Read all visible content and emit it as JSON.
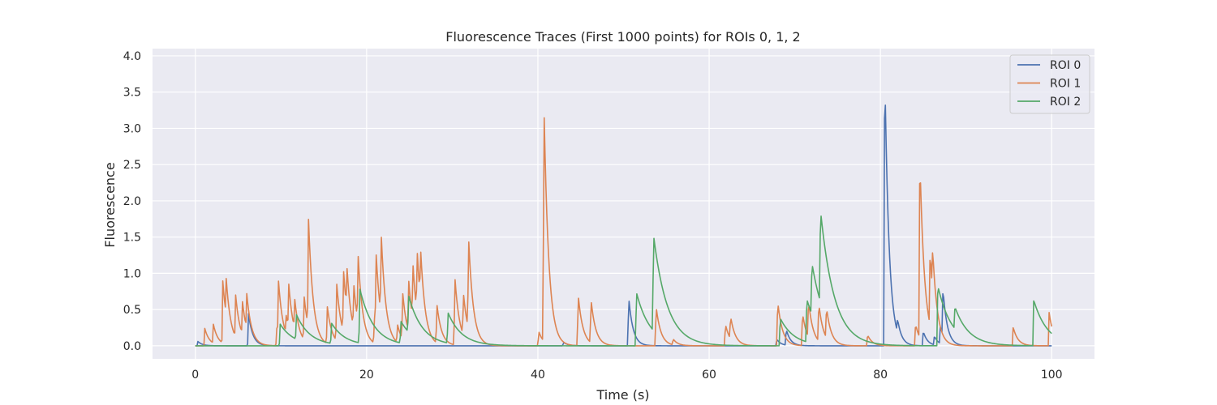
{
  "chart_data": {
    "type": "line",
    "title": "Fluorescence Traces (First 1000 points) for ROIs 0, 1, 2",
    "xlabel": "Time (s)",
    "ylabel": "Fluorescence",
    "xlim": [
      -5,
      105
    ],
    "ylim": [
      -0.18,
      4.1
    ],
    "xticks": [
      0,
      20,
      40,
      60,
      80,
      100
    ],
    "yticks": [
      0.0,
      0.5,
      1.0,
      1.5,
      2.0,
      2.5,
      3.0,
      3.5,
      4.0
    ],
    "xtick_labels": [
      "0",
      "20",
      "40",
      "60",
      "80",
      "100"
    ],
    "ytick_labels": [
      "0.0",
      "0.5",
      "1.0",
      "1.5",
      "2.0",
      "2.5",
      "3.0",
      "3.5",
      "4.0"
    ],
    "grid": true,
    "legend_position": "top-right",
    "background_color": "#eaeaf2",
    "series": [
      {
        "name": "ROI 0",
        "color": "#4c72b0",
        "tau": 0.5,
        "events": [
          [
            0.2,
            0.06
          ],
          [
            6.1,
            0.45
          ],
          [
            42.9,
            0.05
          ],
          [
            50.5,
            0.68
          ],
          [
            67.8,
            0.09
          ],
          [
            68.9,
            0.22
          ],
          [
            80.4,
            3.9
          ],
          [
            81.9,
            0.18
          ],
          [
            84.9,
            0.2
          ],
          [
            86.2,
            0.12
          ],
          [
            86.9,
            0.25
          ],
          [
            87.2,
            0.64
          ]
        ]
      },
      {
        "name": "ROI 1",
        "color": "#dd8452",
        "tau": 0.55,
        "events": [
          [
            1.0,
            0.24
          ],
          [
            2.0,
            0.26
          ],
          [
            3.1,
            0.86
          ],
          [
            3.5,
            0.5
          ],
          [
            4.6,
            0.58
          ],
          [
            5.4,
            0.45
          ],
          [
            5.9,
            0.48
          ],
          [
            9.4,
            0.24
          ],
          [
            9.6,
            0.74
          ],
          [
            10.5,
            0.25
          ],
          [
            10.8,
            0.62
          ],
          [
            11.5,
            0.41
          ],
          [
            12.6,
            0.6
          ],
          [
            13.1,
            1.51
          ],
          [
            15.3,
            0.52
          ],
          [
            16.4,
            0.8
          ],
          [
            17.2,
            0.85
          ],
          [
            17.6,
            0.59
          ],
          [
            18.4,
            0.6
          ],
          [
            18.9,
            0.93
          ],
          [
            20.8,
            0.35
          ],
          [
            21.0,
            1.03
          ],
          [
            21.6,
            1.12
          ],
          [
            23.5,
            0.25
          ],
          [
            24.1,
            0.65
          ],
          [
            24.8,
            0.72
          ],
          [
            25.3,
            0.78
          ],
          [
            25.8,
            0.87
          ],
          [
            26.2,
            0.71
          ],
          [
            28.1,
            0.54
          ],
          [
            30.2,
            0.95
          ],
          [
            31.2,
            0.58
          ],
          [
            31.8,
            1.27
          ],
          [
            40.0,
            0.2
          ],
          [
            40.6,
            3.32
          ],
          [
            44.6,
            0.71
          ],
          [
            46.1,
            0.6
          ],
          [
            53.7,
            0.55
          ],
          [
            55.7,
            0.08
          ],
          [
            61.8,
            0.3
          ],
          [
            62.4,
            0.31
          ],
          [
            67.9,
            0.62
          ],
          [
            70.8,
            0.45
          ],
          [
            71.5,
            0.5
          ],
          [
            72.7,
            0.52
          ],
          [
            73.6,
            0.42
          ],
          [
            78.4,
            0.15
          ],
          [
            84.0,
            0.3
          ],
          [
            84.5,
            2.5
          ],
          [
            85.7,
            1.02
          ],
          [
            86.0,
            0.58
          ],
          [
            95.4,
            0.26
          ],
          [
            99.6,
            0.46
          ]
        ]
      },
      {
        "name": "ROI 2",
        "color": "#55a868",
        "tau": 1.6,
        "events": [
          [
            9.8,
            0.3
          ],
          [
            11.7,
            0.34
          ],
          [
            15.8,
            0.28
          ],
          [
            19.1,
            0.75
          ],
          [
            23.9,
            0.3
          ],
          [
            24.8,
            0.5
          ],
          [
            29.4,
            0.42
          ],
          [
            51.4,
            0.74
          ],
          [
            53.4,
            1.32
          ],
          [
            68.2,
            0.38
          ],
          [
            71.3,
            0.59
          ],
          [
            71.9,
            0.7
          ],
          [
            72.9,
            1.26
          ],
          [
            86.6,
            0.83
          ],
          [
            88.6,
            0.3
          ],
          [
            97.8,
            0.63
          ]
        ]
      }
    ]
  }
}
